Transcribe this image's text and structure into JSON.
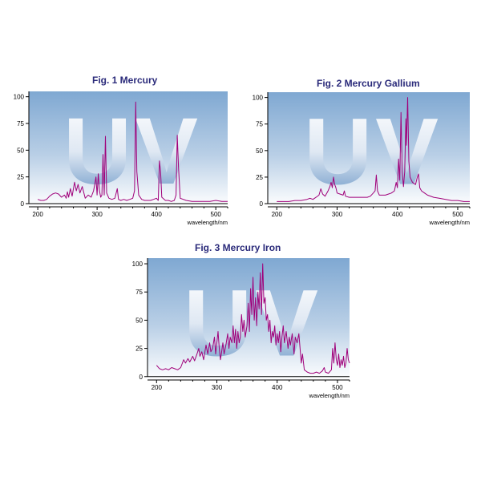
{
  "chart_data": [
    {
      "type": "line",
      "title": "Fig. 1 Mercury",
      "watermark": "UV",
      "xlabel": "wavelength/nm",
      "ylabel": "",
      "xlim": [
        185,
        520
      ],
      "ylim": [
        -3,
        105
      ],
      "xticks": [
        200,
        300,
        400,
        500
      ],
      "yticks": [
        0,
        25,
        50,
        75,
        100
      ],
      "grid": false,
      "line_color": "#a0007a",
      "series": [
        {
          "values": [
            [
              200,
              4
            ],
            [
              205,
              3
            ],
            [
              210,
              3
            ],
            [
              215,
              4
            ],
            [
              220,
              7
            ],
            [
              225,
              9
            ],
            [
              230,
              10
            ],
            [
              235,
              9
            ],
            [
              240,
              6
            ],
            [
              245,
              8
            ],
            [
              248,
              5
            ],
            [
              250,
              11
            ],
            [
              252,
              6
            ],
            [
              255,
              14
            ],
            [
              258,
              7
            ],
            [
              262,
              20
            ],
            [
              265,
              12
            ],
            [
              268,
              18
            ],
            [
              271,
              10
            ],
            [
              275,
              16
            ],
            [
              280,
              5
            ],
            [
              285,
              8
            ],
            [
              290,
              6
            ],
            [
              294,
              12
            ],
            [
              296,
              18
            ],
            [
              298,
              25
            ],
            [
              300,
              8
            ],
            [
              302,
              28
            ],
            [
              304,
              12
            ],
            [
              306,
              6
            ],
            [
              308,
              8
            ],
            [
              310,
              46
            ],
            [
              312,
              8
            ],
            [
              314,
              63
            ],
            [
              316,
              10
            ],
            [
              320,
              5
            ],
            [
              325,
              4
            ],
            [
              330,
              5
            ],
            [
              334,
              14
            ],
            [
              336,
              4
            ],
            [
              340,
              3
            ],
            [
              345,
              4
            ],
            [
              350,
              3
            ],
            [
              355,
              4
            ],
            [
              360,
              5
            ],
            [
              363,
              12
            ],
            [
              365,
              95
            ],
            [
              367,
              30
            ],
            [
              370,
              8
            ],
            [
              375,
              4
            ],
            [
              380,
              3
            ],
            [
              390,
              3
            ],
            [
              395,
              4
            ],
            [
              400,
              5
            ],
            [
              403,
              3
            ],
            [
              405,
              40
            ],
            [
              407,
              30
            ],
            [
              409,
              6
            ],
            [
              415,
              3
            ],
            [
              420,
              3
            ],
            [
              425,
              2
            ],
            [
              430,
              3
            ],
            [
              433,
              8
            ],
            [
              435,
              64
            ],
            [
              437,
              35
            ],
            [
              440,
              5
            ],
            [
              450,
              3
            ],
            [
              460,
              2
            ],
            [
              470,
              2
            ],
            [
              480,
              2
            ],
            [
              490,
              2
            ],
            [
              500,
              3
            ],
            [
              510,
              2
            ],
            [
              520,
              2
            ]
          ]
        }
      ]
    },
    {
      "type": "line",
      "title": "Fig. 2 Mercury Gallium",
      "watermark": "UV",
      "xlabel": "wavelength/nm",
      "ylabel": "",
      "xlim": [
        185,
        520
      ],
      "ylim": [
        -3,
        105
      ],
      "xticks": [
        200,
        300,
        400,
        500
      ],
      "yticks": [
        0,
        25,
        50,
        75,
        100
      ],
      "grid": false,
      "line_color": "#a0007a",
      "series": [
        {
          "values": [
            [
              200,
              2
            ],
            [
              210,
              2
            ],
            [
              220,
              2
            ],
            [
              230,
              3
            ],
            [
              240,
              3
            ],
            [
              250,
              4
            ],
            [
              255,
              5
            ],
            [
              260,
              4
            ],
            [
              265,
              6
            ],
            [
              270,
              8
            ],
            [
              273,
              14
            ],
            [
              276,
              9
            ],
            [
              280,
              7
            ],
            [
              285,
              12
            ],
            [
              288,
              16
            ],
            [
              290,
              20
            ],
            [
              292,
              15
            ],
            [
              294,
              25
            ],
            [
              296,
              18
            ],
            [
              298,
              15
            ],
            [
              300,
              10
            ],
            [
              305,
              9
            ],
            [
              310,
              8
            ],
            [
              312,
              12
            ],
            [
              314,
              7
            ],
            [
              320,
              6
            ],
            [
              330,
              6
            ],
            [
              340,
              6
            ],
            [
              350,
              6
            ],
            [
              355,
              7
            ],
            [
              360,
              10
            ],
            [
              363,
              12
            ],
            [
              365,
              27
            ],
            [
              367,
              12
            ],
            [
              370,
              8
            ],
            [
              380,
              8
            ],
            [
              385,
              9
            ],
            [
              390,
              10
            ],
            [
              395,
              12
            ],
            [
              398,
              20
            ],
            [
              400,
              15
            ],
            [
              402,
              42
            ],
            [
              404,
              22
            ],
            [
              406,
              86
            ],
            [
              408,
              30
            ],
            [
              410,
              16
            ],
            [
              412,
              30
            ],
            [
              414,
              80
            ],
            [
              415,
              55
            ],
            [
              417,
              100
            ],
            [
              419,
              40
            ],
            [
              421,
              25
            ],
            [
              425,
              20
            ],
            [
              430,
              18
            ],
            [
              433,
              25
            ],
            [
              435,
              28
            ],
            [
              437,
              15
            ],
            [
              440,
              12
            ],
            [
              445,
              10
            ],
            [
              450,
              8
            ],
            [
              460,
              6
            ],
            [
              470,
              5
            ],
            [
              480,
              4
            ],
            [
              490,
              3
            ],
            [
              500,
              3
            ],
            [
              510,
              2
            ],
            [
              520,
              2
            ]
          ]
        }
      ]
    },
    {
      "type": "line",
      "title": "Fig. 3 Mercury Iron",
      "watermark": "UV",
      "xlabel": "wavelength/nm",
      "ylabel": "",
      "xlim": [
        185,
        520
      ],
      "ylim": [
        -3,
        105
      ],
      "xticks": [
        200,
        300,
        400,
        500
      ],
      "yticks": [
        0,
        25,
        50,
        75,
        100
      ],
      "grid": false,
      "line_color": "#a0007a",
      "series": [
        {
          "values": [
            [
              200,
              10
            ],
            [
              205,
              7
            ],
            [
              210,
              6
            ],
            [
              215,
              7
            ],
            [
              220,
              6
            ],
            [
              225,
              8
            ],
            [
              230,
              7
            ],
            [
              235,
              6
            ],
            [
              240,
              8
            ],
            [
              245,
              15
            ],
            [
              248,
              12
            ],
            [
              252,
              16
            ],
            [
              255,
              13
            ],
            [
              260,
              18
            ],
            [
              263,
              14
            ],
            [
              267,
              20
            ],
            [
              270,
              25
            ],
            [
              272,
              18
            ],
            [
              275,
              22
            ],
            [
              278,
              15
            ],
            [
              282,
              28
            ],
            [
              285,
              20
            ],
            [
              288,
              30
            ],
            [
              290,
              22
            ],
            [
              293,
              25
            ],
            [
              296,
              35
            ],
            [
              298,
              20
            ],
            [
              300,
              30
            ],
            [
              302,
              40
            ],
            [
              304,
              25
            ],
            [
              306,
              15
            ],
            [
              308,
              22
            ],
            [
              310,
              30
            ],
            [
              312,
              20
            ],
            [
              315,
              28
            ],
            [
              318,
              38
            ],
            [
              320,
              25
            ],
            [
              322,
              35
            ],
            [
              325,
              30
            ],
            [
              327,
              45
            ],
            [
              329,
              30
            ],
            [
              331,
              42
            ],
            [
              333,
              25
            ],
            [
              335,
              40
            ],
            [
              337,
              30
            ],
            [
              339,
              35
            ],
            [
              341,
              55
            ],
            [
              343,
              40
            ],
            [
              345,
              50
            ],
            [
              347,
              35
            ],
            [
              350,
              45
            ],
            [
              352,
              65
            ],
            [
              354,
              40
            ],
            [
              356,
              78
            ],
            [
              358,
              55
            ],
            [
              360,
              88
            ],
            [
              362,
              50
            ],
            [
              364,
              70
            ],
            [
              366,
              45
            ],
            [
              368,
              75
            ],
            [
              370,
              60
            ],
            [
              372,
              92
            ],
            [
              374,
              55
            ],
            [
              376,
              100
            ],
            [
              378,
              65
            ],
            [
              380,
              70
            ],
            [
              382,
              50
            ],
            [
              384,
              55
            ],
            [
              386,
              40
            ],
            [
              388,
              50
            ],
            [
              390,
              30
            ],
            [
              392,
              40
            ],
            [
              394,
              35
            ],
            [
              396,
              45
            ],
            [
              398,
              28
            ],
            [
              400,
              38
            ],
            [
              402,
              30
            ],
            [
              404,
              40
            ],
            [
              406,
              22
            ],
            [
              408,
              35
            ],
            [
              410,
              45
            ],
            [
              412,
              30
            ],
            [
              415,
              40
            ],
            [
              418,
              25
            ],
            [
              420,
              35
            ],
            [
              422,
              28
            ],
            [
              425,
              38
            ],
            [
              428,
              20
            ],
            [
              430,
              35
            ],
            [
              433,
              30
            ],
            [
              436,
              38
            ],
            [
              438,
              25
            ],
            [
              440,
              12
            ],
            [
              442,
              20
            ],
            [
              445,
              6
            ],
            [
              450,
              4
            ],
            [
              455,
              3
            ],
            [
              460,
              3
            ],
            [
              465,
              4
            ],
            [
              470,
              3
            ],
            [
              475,
              5
            ],
            [
              478,
              8
            ],
            [
              480,
              4
            ],
            [
              485,
              3
            ],
            [
              490,
              6
            ],
            [
              492,
              25
            ],
            [
              494,
              12
            ],
            [
              496,
              30
            ],
            [
              498,
              15
            ],
            [
              500,
              10
            ],
            [
              502,
              20
            ],
            [
              504,
              8
            ],
            [
              506,
              15
            ],
            [
              508,
              10
            ],
            [
              510,
              18
            ],
            [
              512,
              8
            ],
            [
              514,
              12
            ],
            [
              516,
              25
            ],
            [
              518,
              15
            ],
            [
              520,
              12
            ]
          ]
        }
      ]
    }
  ]
}
